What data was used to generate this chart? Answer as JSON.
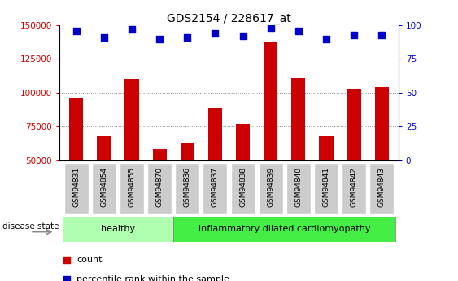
{
  "title": "GDS2154 / 228617_at",
  "samples": [
    "GSM94831",
    "GSM94854",
    "GSM94855",
    "GSM94870",
    "GSM94836",
    "GSM94837",
    "GSM94838",
    "GSM94839",
    "GSM94840",
    "GSM94841",
    "GSM94842",
    "GSM94843"
  ],
  "counts": [
    96000,
    68000,
    110000,
    58000,
    63000,
    89000,
    77000,
    138000,
    111000,
    68000,
    103000,
    104000
  ],
  "percentiles": [
    96,
    91,
    97,
    90,
    91,
    94,
    92,
    98,
    96,
    90,
    93,
    93
  ],
  "ylim_left": [
    50000,
    150000
  ],
  "ylim_right": [
    0,
    100
  ],
  "yticks_left": [
    50000,
    75000,
    100000,
    125000,
    150000
  ],
  "yticks_right": [
    0,
    25,
    50,
    75,
    100
  ],
  "bar_color": "#cc0000",
  "scatter_color": "#0000cc",
  "healthy_count": 4,
  "idcm_count": 8,
  "label_healthy": "healthy",
  "label_idcm": "inflammatory dilated cardiomyopathy",
  "disease_state_label": "disease state",
  "legend_count": "count",
  "legend_percentile": "percentile rank within the sample",
  "healthy_bg": "#b0ffb0",
  "idcm_bg": "#44ee44",
  "bar_width": 0.5,
  "scatter_marker_size": 35,
  "tick_label_color_left": "#cc0000",
  "tick_label_color_right": "#0000cc",
  "tick_box_color": "#cccccc",
  "grid_color": "#888888",
  "title_fontsize": 10,
  "axis_fontsize": 7.5,
  "label_fontsize": 8
}
